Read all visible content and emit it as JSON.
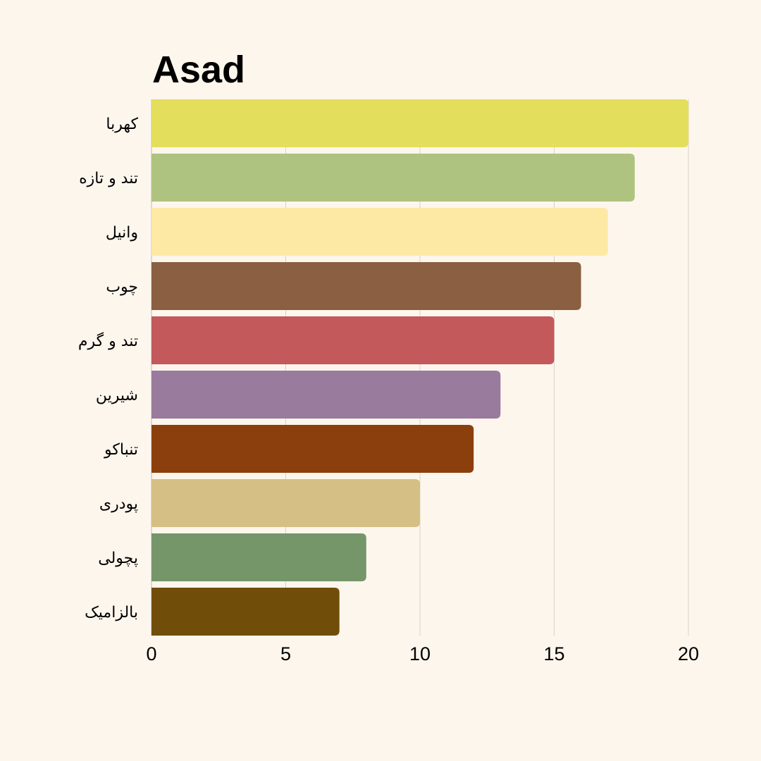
{
  "chart_data": {
    "type": "bar",
    "orientation": "horizontal",
    "title": "Asad",
    "xlabel": "",
    "ylabel": "",
    "categories": [
      "کهربا",
      "تند و تازه",
      "وانیل",
      "چوب",
      "تند و گرم",
      "شیرین",
      "تنباکو",
      "پودری",
      "پچولی",
      "بالزامیک"
    ],
    "values": [
      20,
      18,
      17,
      16,
      15,
      13,
      12,
      10,
      8,
      7
    ],
    "colors": [
      "#e3de5b",
      "#afc380",
      "#fde9a4",
      "#8a5f42",
      "#c3595b",
      "#997b9e",
      "#8b3f0c",
      "#d5bf84",
      "#759669",
      "#714d0a"
    ],
    "xlim": [
      0,
      20
    ],
    "xticks": [
      "0",
      "5",
      "10",
      "15",
      "20"
    ],
    "grid": true,
    "legend": "none"
  }
}
